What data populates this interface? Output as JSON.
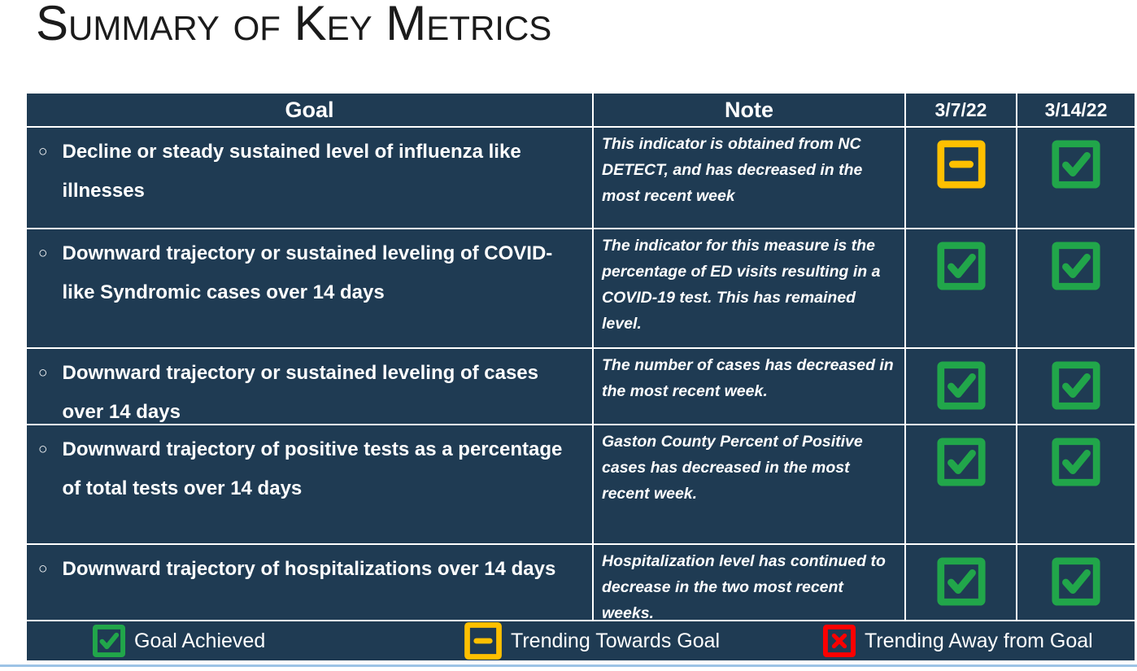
{
  "title": "Summary of Key Metrics",
  "table": {
    "headers": {
      "goal": "Goal",
      "note": "Note",
      "date1": "3/7/22",
      "date2": "3/14/22"
    },
    "rows": [
      {
        "goal": "Decline or steady sustained level of influenza like illnesses",
        "note": "This indicator is obtained from NC DETECT, and has decreased in the most recent week",
        "status1": "trending-towards",
        "status2": "achieved"
      },
      {
        "goal": "Downward trajectory or sustained leveling of COVID-like Syndromic cases over 14 days",
        "note": "The indicator for this measure is the percentage of ED visits resulting in a COVID-19 test. This has remained level.",
        "status1": "achieved",
        "status2": "achieved"
      },
      {
        "goal": "Downward trajectory or sustained leveling of cases over 14 days",
        "note": "The number of cases has decreased in the most recent week.",
        "status1": "achieved",
        "status2": "achieved"
      },
      {
        "goal": "Downward trajectory of positive tests as a percentage of total tests over 14 days",
        "note": "Gaston County Percent of Positive cases has decreased in the most recent week.",
        "status1": "achieved",
        "status2": "achieved"
      },
      {
        "goal": "Downward trajectory of hospitalizations over 14 days",
        "note": "Hospitalization level has continued to decrease in the two most recent weeks.",
        "status1": "achieved",
        "status2": "achieved"
      }
    ]
  },
  "legend": [
    {
      "type": "achieved",
      "label": "Goal Achieved"
    },
    {
      "type": "trending-towards",
      "label": "Trending Towards Goal"
    },
    {
      "type": "trending-away",
      "label": "Trending Away from Goal"
    }
  ],
  "colors": {
    "cell_background": "#1F3B53",
    "achieved_green": "#21A64A",
    "trending_towards_yellow": "#FFC000",
    "trending_away_red": "#FE0000",
    "accent_line_blue": "#9DC3E6"
  }
}
